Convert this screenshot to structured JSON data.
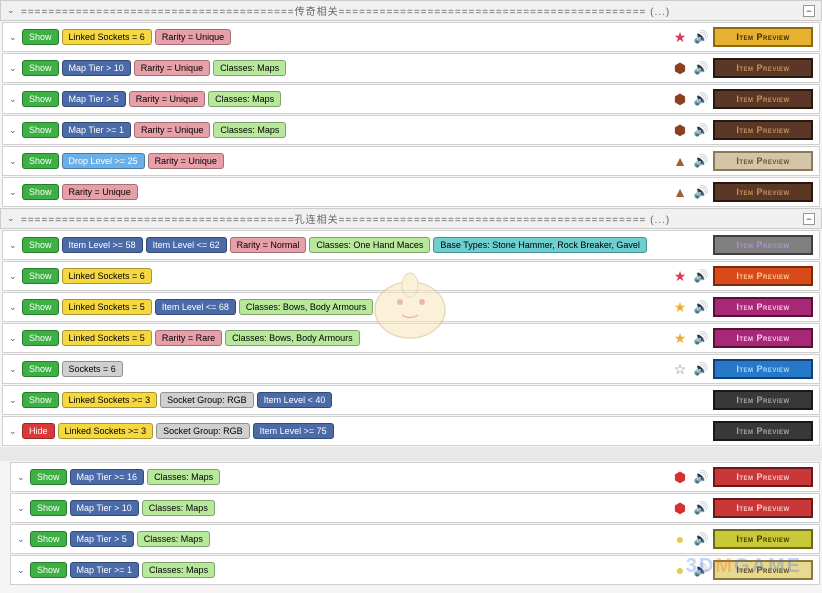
{
  "section1_title": "========================================传奇相关============================================= (...)",
  "section2_title": "========================================孔连相关============================================= (...)",
  "show_label": "Show",
  "hide_label": "Hide",
  "preview_label": "Item Preview",
  "colors": {
    "show": "#3cb043",
    "hide": "#d83a3a",
    "yellow_tag": "#f5d742",
    "pink_tag": "#e8a0a8",
    "green_tag": "#b8e89c",
    "blue_tag": "#6ab0e8",
    "gray_tag": "#d0d0d0",
    "teal_tag": "#6dcfcf",
    "darkblue_tag": "#4a6aa8",
    "preview_gold": {
      "bg": "#e8b030",
      "border": "#8b6914",
      "text": "#3a2a00"
    },
    "preview_brown": {
      "bg": "#5a3825",
      "border": "#2a1810",
      "text": "#c89060"
    },
    "preview_tan": {
      "bg": "#d4c4a8",
      "border": "#8a7a5a",
      "text": "#6a5030"
    },
    "preview_gray": {
      "bg": "#808080",
      "border": "#404040",
      "text": "#b090d0"
    },
    "preview_orange": {
      "bg": "#d84a1a",
      "border": "#7a2a0a",
      "text": "#ffc890"
    },
    "preview_magenta": {
      "bg": "#a82878",
      "border": "#581038",
      "text": "#ffc8e8"
    },
    "preview_blue": {
      "bg": "#2878c8",
      "border": "#104078",
      "text": "#a8d8ff"
    },
    "preview_dark": {
      "bg": "#383838",
      "border": "#181818",
      "text": "#a8a8a8"
    },
    "preview_red": {
      "bg": "#c83838",
      "border": "#6a1818",
      "text": "#ffc8c8"
    },
    "preview_yellow": {
      "bg": "#c8c838",
      "border": "#6a6a18",
      "text": "#3a3a00"
    },
    "preview_lightgold": {
      "bg": "#e8d890",
      "border": "#8a7a40",
      "text": "#5a4a10"
    }
  },
  "icons": {
    "star_red": "★",
    "star_gold": "★",
    "star_gray": "☆",
    "sound": "🔊",
    "hex_brown": "⬢",
    "hex_red": "⬢",
    "triangle": "▲",
    "circle_gold": "●"
  },
  "rules1": [
    {
      "tags": [
        {
          "t": "Show",
          "c": "show"
        },
        {
          "t": "Linked Sockets = 6",
          "c": "yellow_tag"
        },
        {
          "t": "Rarity = Unique",
          "c": "pink_tag"
        }
      ],
      "icon": {
        "g": "★",
        "c": "#d83a5a"
      },
      "sound": true,
      "preview": "preview_gold"
    },
    {
      "tags": [
        {
          "t": "Show",
          "c": "show"
        },
        {
          "t": "Map Tier > 10",
          "c": "darkblue_tag"
        },
        {
          "t": "Rarity = Unique",
          "c": "pink_tag"
        },
        {
          "t": "Classes: Maps",
          "c": "green_tag"
        }
      ],
      "icon": {
        "g": "⬢",
        "c": "#8b4020"
      },
      "sound": true,
      "preview": "preview_brown"
    },
    {
      "tags": [
        {
          "t": "Show",
          "c": "show"
        },
        {
          "t": "Map Tier > 5",
          "c": "darkblue_tag"
        },
        {
          "t": "Rarity = Unique",
          "c": "pink_tag"
        },
        {
          "t": "Classes: Maps",
          "c": "green_tag"
        }
      ],
      "icon": {
        "g": "⬢",
        "c": "#8b4020"
      },
      "sound": true,
      "preview": "preview_brown"
    },
    {
      "tags": [
        {
          "t": "Show",
          "c": "show"
        },
        {
          "t": "Map Tier >= 1",
          "c": "darkblue_tag"
        },
        {
          "t": "Rarity = Unique",
          "c": "pink_tag"
        },
        {
          "t": "Classes: Maps",
          "c": "green_tag"
        }
      ],
      "icon": {
        "g": "⬢",
        "c": "#8b4020"
      },
      "sound": true,
      "preview": "preview_brown"
    },
    {
      "tags": [
        {
          "t": "Show",
          "c": "show"
        },
        {
          "t": "Drop Level >= 25",
          "c": "blue_tag"
        },
        {
          "t": "Rarity = Unique",
          "c": "pink_tag"
        }
      ],
      "icon": {
        "g": "▲",
        "c": "#a06030"
      },
      "sound": true,
      "preview": "preview_tan"
    },
    {
      "tags": [
        {
          "t": "Show",
          "c": "show"
        },
        {
          "t": "Rarity = Unique",
          "c": "pink_tag"
        }
      ],
      "icon": {
        "g": "▲",
        "c": "#a06030"
      },
      "sound": true,
      "preview": "preview_brown"
    }
  ],
  "rules2": [
    {
      "tags": [
        {
          "t": "Show",
          "c": "show"
        },
        {
          "t": "Item Level >= 58",
          "c": "darkblue_tag"
        },
        {
          "t": "Item Level <= 62",
          "c": "darkblue_tag"
        },
        {
          "t": "Rarity = Normal",
          "c": "pink_tag"
        },
        {
          "t": "Classes: One Hand Maces",
          "c": "green_tag"
        },
        {
          "t": "Base Types: Stone Hammer, Rock Breaker, Gavel",
          "c": "teal_tag"
        }
      ],
      "icon": null,
      "sound": false,
      "preview": "preview_gray"
    },
    {
      "tags": [
        {
          "t": "Show",
          "c": "show"
        },
        {
          "t": "Linked Sockets = 6",
          "c": "yellow_tag"
        }
      ],
      "icon": {
        "g": "★",
        "c": "#d83a5a"
      },
      "sound": true,
      "preview": "preview_orange"
    },
    {
      "tags": [
        {
          "t": "Show",
          "c": "show"
        },
        {
          "t": "Linked Sockets = 5",
          "c": "yellow_tag"
        },
        {
          "t": "Item Level <= 68",
          "c": "darkblue_tag"
        },
        {
          "t": "Classes: Bows, Body Armours",
          "c": "green_tag"
        }
      ],
      "icon": {
        "g": "★",
        "c": "#e8b030"
      },
      "sound": true,
      "preview": "preview_magenta"
    },
    {
      "tags": [
        {
          "t": "Show",
          "c": "show"
        },
        {
          "t": "Linked Sockets = 5",
          "c": "yellow_tag"
        },
        {
          "t": "Rarity = Rare",
          "c": "pink_tag"
        },
        {
          "t": "Classes: Bows, Body Armours",
          "c": "green_tag"
        }
      ],
      "icon": {
        "g": "★",
        "c": "#e8b030"
      },
      "sound": true,
      "preview": "preview_magenta"
    },
    {
      "tags": [
        {
          "t": "Show",
          "c": "show"
        },
        {
          "t": "Sockets = 6",
          "c": "gray_tag"
        }
      ],
      "icon": {
        "g": "☆",
        "c": "#808080"
      },
      "sound": true,
      "preview": "preview_blue"
    },
    {
      "tags": [
        {
          "t": "Show",
          "c": "show"
        },
        {
          "t": "Linked Sockets >= 3",
          "c": "yellow_tag"
        },
        {
          "t": "Socket Group: RGB",
          "c": "gray_tag"
        },
        {
          "t": "Item Level < 40",
          "c": "darkblue_tag"
        }
      ],
      "icon": null,
      "sound": false,
      "preview": "preview_dark"
    },
    {
      "tags": [
        {
          "t": "Hide",
          "c": "hide"
        },
        {
          "t": "Linked Sockets >= 3",
          "c": "yellow_tag"
        },
        {
          "t": "Socket Group: RGB",
          "c": "gray_tag"
        },
        {
          "t": "Item Level >= 75",
          "c": "darkblue_tag"
        }
      ],
      "icon": null,
      "sound": false,
      "preview": "preview_dark"
    }
  ],
  "rules3": [
    {
      "tags": [
        {
          "t": "Show",
          "c": "show"
        },
        {
          "t": "Map Tier >= 16",
          "c": "darkblue_tag"
        },
        {
          "t": "Classes: Maps",
          "c": "green_tag"
        }
      ],
      "icon": {
        "g": "⬢",
        "c": "#d83030"
      },
      "sound": true,
      "preview": "preview_red",
      "indent": true
    },
    {
      "tags": [
        {
          "t": "Show",
          "c": "show"
        },
        {
          "t": "Map Tier > 10",
          "c": "darkblue_tag"
        },
        {
          "t": "Classes: Maps",
          "c": "green_tag"
        }
      ],
      "icon": {
        "g": "⬢",
        "c": "#d83030"
      },
      "sound": true,
      "preview": "preview_red",
      "indent": true
    },
    {
      "tags": [
        {
          "t": "Show",
          "c": "show"
        },
        {
          "t": "Map Tier > 5",
          "c": "darkblue_tag"
        },
        {
          "t": "Classes: Maps",
          "c": "green_tag"
        }
      ],
      "icon": {
        "g": "●",
        "c": "#e8c850"
      },
      "sound": true,
      "preview": "preview_yellow",
      "indent": true
    },
    {
      "tags": [
        {
          "t": "Show",
          "c": "show"
        },
        {
          "t": "Map Tier >= 1",
          "c": "darkblue_tag"
        },
        {
          "t": "Classes: Maps",
          "c": "green_tag"
        }
      ],
      "icon": {
        "g": "●",
        "c": "#e8c850"
      },
      "sound": true,
      "preview": "preview_lightgold",
      "indent": true
    }
  ],
  "watermark": {
    "prefix": "3D",
    "mid": "M",
    "suffix": "GAME"
  }
}
